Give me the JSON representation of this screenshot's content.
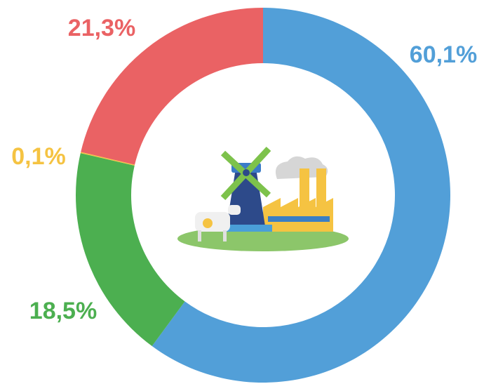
{
  "chart_data": {
    "type": "donut",
    "series": [
      {
        "name": null,
        "color": "#529fd8",
        "values": [
          60.1
        ],
        "value_labels": [
          "60,1%"
        ]
      },
      {
        "name": null,
        "color": "#4caf50",
        "values": [
          18.5
        ],
        "value_labels": [
          "18,5%"
        ]
      },
      {
        "name": null,
        "color": "#f5c342",
        "values": [
          0.1
        ],
        "value_labels": [
          "0,1%"
        ]
      },
      {
        "name": null,
        "color": "#ea6264",
        "values": [
          21.3
        ],
        "value_labels": [
          "21,3%"
        ]
      }
    ]
  }
}
